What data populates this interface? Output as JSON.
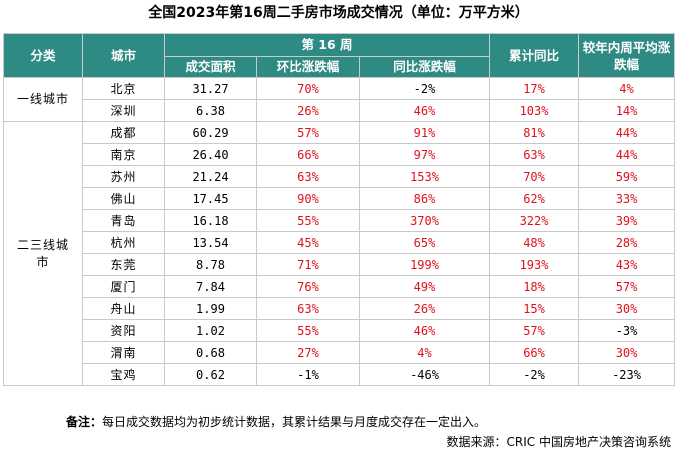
{
  "title": "全国2023年第16周二手房市场成交情况（单位：万平方米）",
  "headers": {
    "category": "分类",
    "city": "城市",
    "week": "第 16 周",
    "volume": "成交面积",
    "wow": "环比涨跌幅",
    "yoy": "同比涨跌幅",
    "cumulative": "累计同比",
    "vs_avg": "较年内周平均涨跌幅"
  },
  "categories": {
    "tier1": "一线城市",
    "tier23": "二三线城市"
  },
  "rows": [
    {
      "city": "北京",
      "volume": "31.27",
      "wow": "70%",
      "yoy": "-2%",
      "cum": "17%",
      "avg": "4%"
    },
    {
      "city": "深圳",
      "volume": "6.38",
      "wow": "26%",
      "yoy": "46%",
      "cum": "103%",
      "avg": "14%"
    },
    {
      "city": "成都",
      "volume": "60.29",
      "wow": "57%",
      "yoy": "91%",
      "cum": "81%",
      "avg": "44%"
    },
    {
      "city": "南京",
      "volume": "26.40",
      "wow": "66%",
      "yoy": "97%",
      "cum": "63%",
      "avg": "44%"
    },
    {
      "city": "苏州",
      "volume": "21.24",
      "wow": "63%",
      "yoy": "153%",
      "cum": "70%",
      "avg": "59%"
    },
    {
      "city": "佛山",
      "volume": "17.45",
      "wow": "90%",
      "yoy": "86%",
      "cum": "62%",
      "avg": "33%"
    },
    {
      "city": "青岛",
      "volume": "16.18",
      "wow": "55%",
      "yoy": "370%",
      "cum": "322%",
      "avg": "39%"
    },
    {
      "city": "杭州",
      "volume": "13.54",
      "wow": "45%",
      "yoy": "65%",
      "cum": "48%",
      "avg": "28%"
    },
    {
      "city": "东莞",
      "volume": "8.78",
      "wow": "71%",
      "yoy": "199%",
      "cum": "193%",
      "avg": "43%"
    },
    {
      "city": "厦门",
      "volume": "7.84",
      "wow": "76%",
      "yoy": "49%",
      "cum": "18%",
      "avg": "57%"
    },
    {
      "city": "舟山",
      "volume": "1.99",
      "wow": "63%",
      "yoy": "26%",
      "cum": "15%",
      "avg": "30%"
    },
    {
      "city": "资阳",
      "volume": "1.02",
      "wow": "55%",
      "yoy": "46%",
      "cum": "57%",
      "avg": "-3%"
    },
    {
      "city": "渭南",
      "volume": "0.68",
      "wow": "27%",
      "yoy": "4%",
      "cum": "66%",
      "avg": "30%"
    },
    {
      "city": "宝鸡",
      "volume": "0.62",
      "wow": "-1%",
      "yoy": "-46%",
      "cum": "-2%",
      "avg": "-23%"
    }
  ],
  "note_label": "备注：",
  "note_text": "每日成交数据均为初步统计数据，其累计结果与月度成交存在一定出入。",
  "source": "数据来源：CRIC 中国房地产决策咨询系统",
  "colors": {
    "header_bg": "#2e8b84",
    "positive": "#e0111d",
    "negative": "#000000"
  }
}
